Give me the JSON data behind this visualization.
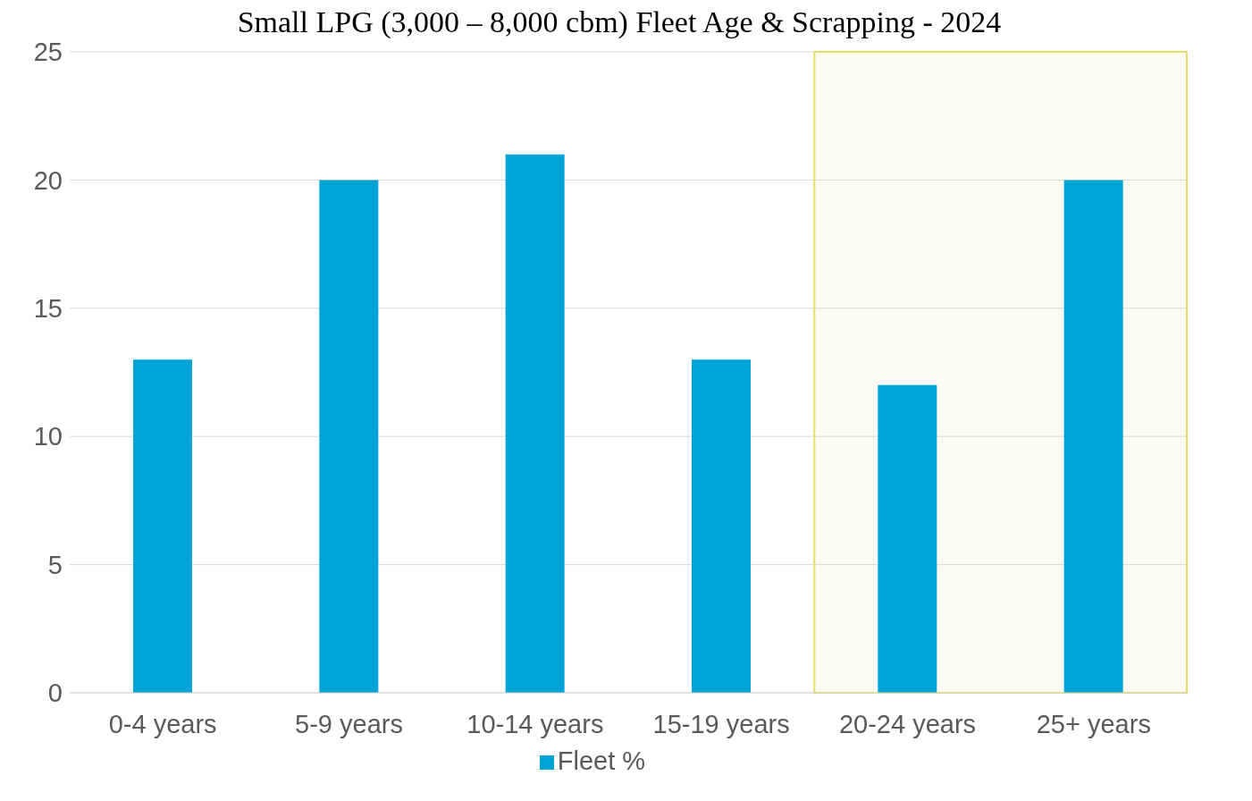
{
  "chart_data": {
    "type": "bar",
    "title": "Small LPG (3,000 – 8,000 cbm) Fleet Age & Scrapping - 2024",
    "categories": [
      "0-4 years",
      "5-9 years",
      "10-14 years",
      "15-19 years",
      "20-24 years",
      "25+ years"
    ],
    "series": [
      {
        "name": "Fleet %",
        "color": "#00a3d6",
        "values": [
          13,
          20,
          21,
          13,
          12,
          20
        ]
      }
    ],
    "ylim": [
      0,
      25
    ],
    "yticks": [
      0,
      5,
      10,
      15,
      20,
      25
    ],
    "grid": "y",
    "legend": "bottom",
    "bands": [
      {
        "axis": "x",
        "from": "20-24 years",
        "to": "25+ years",
        "color": "#e8dc6a"
      }
    ]
  }
}
